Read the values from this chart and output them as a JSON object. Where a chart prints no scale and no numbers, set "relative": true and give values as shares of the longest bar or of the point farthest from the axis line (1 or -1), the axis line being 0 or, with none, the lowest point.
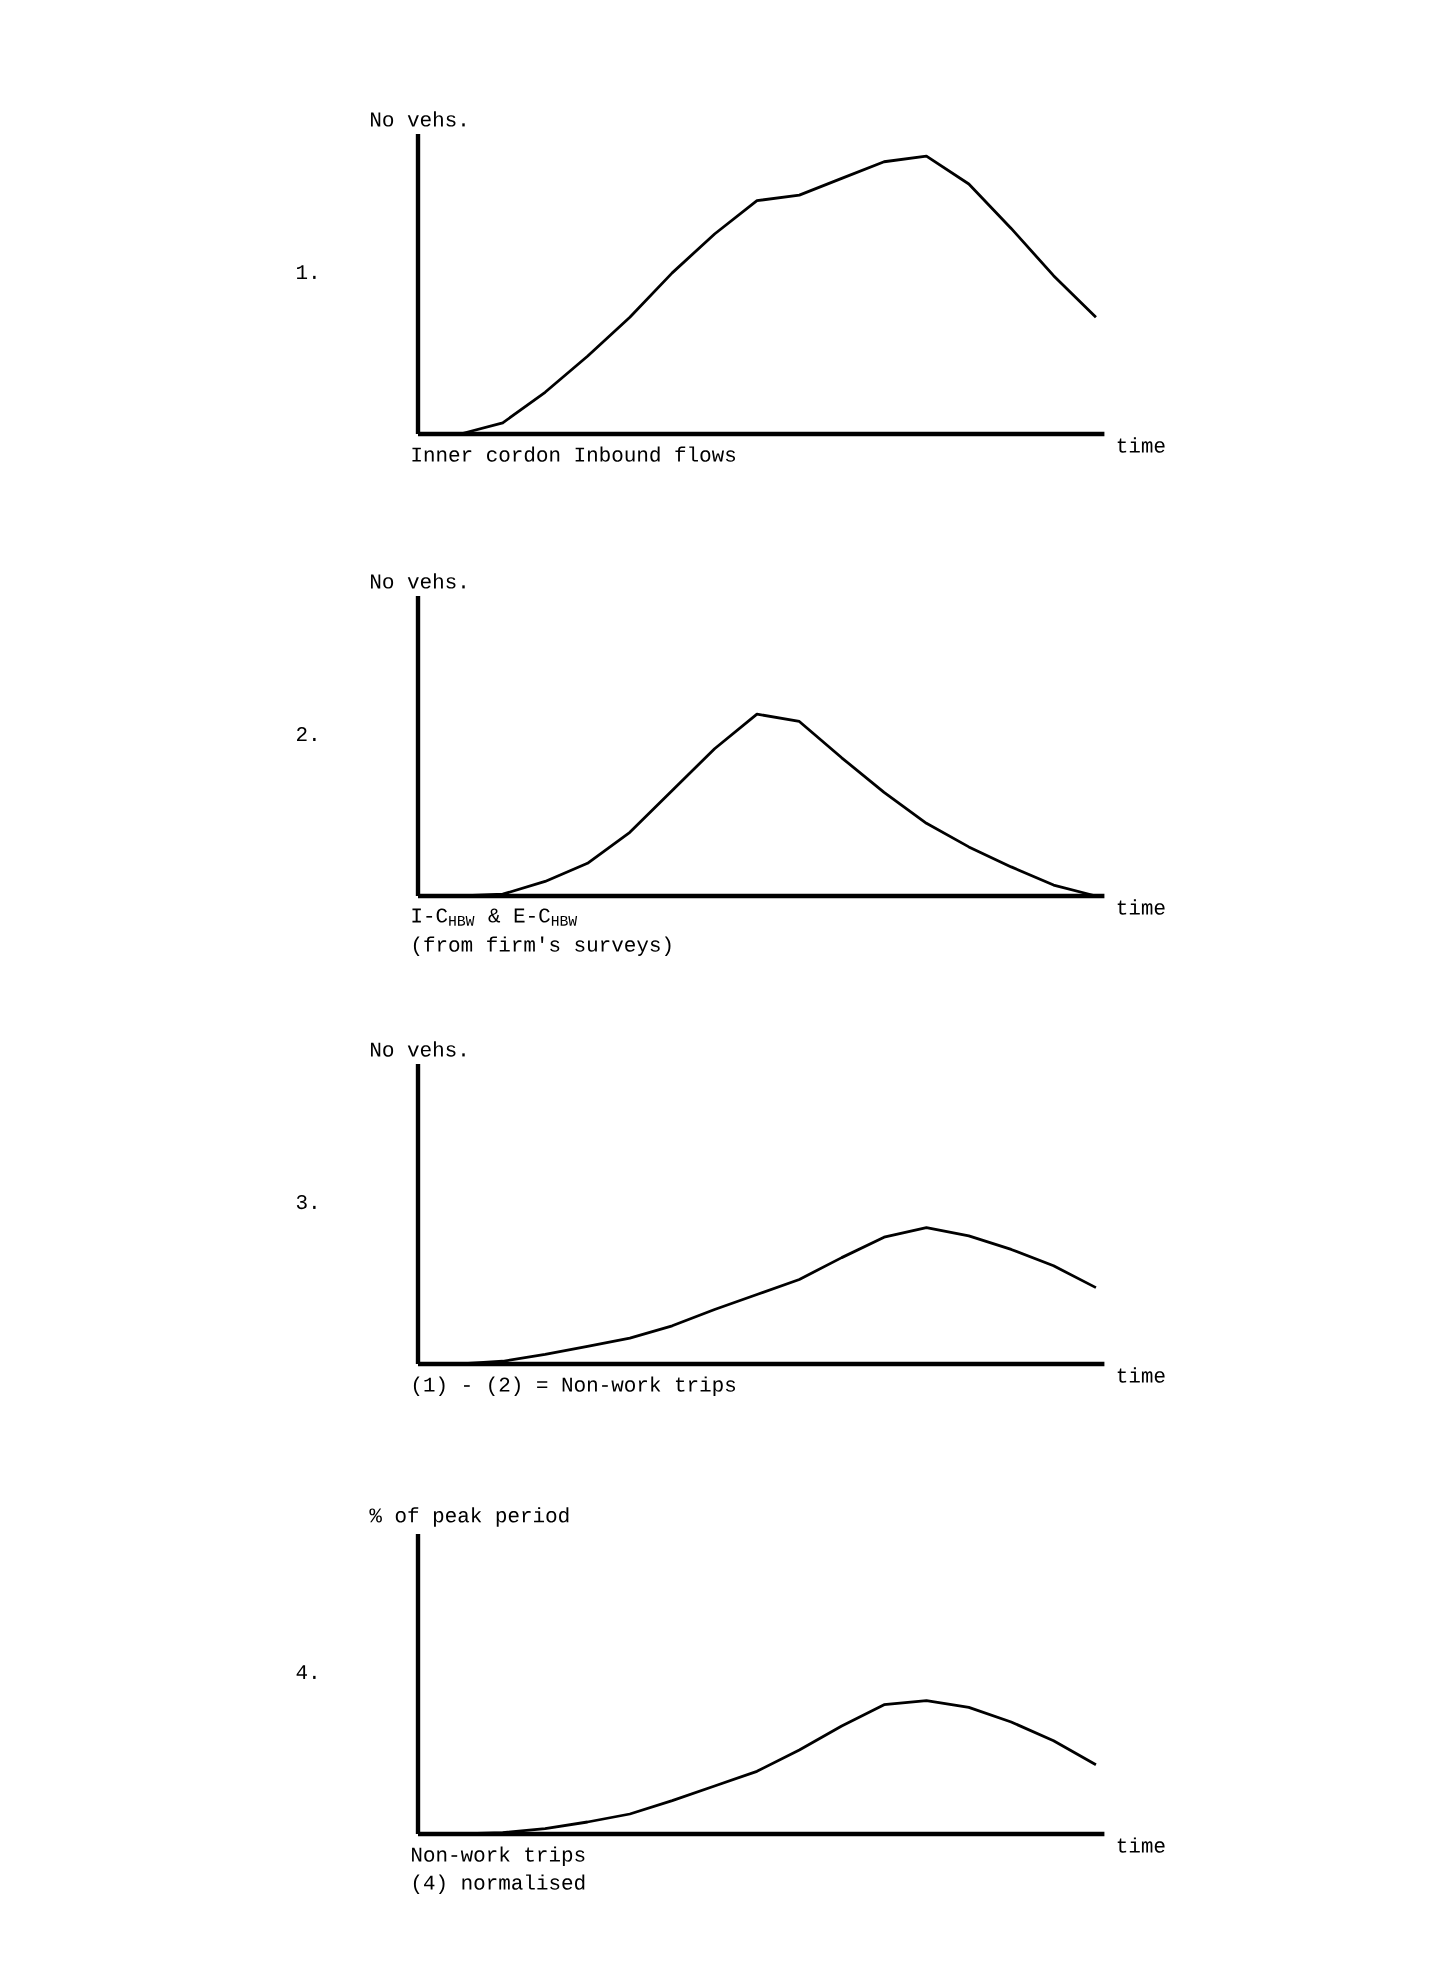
{
  "chart_data": [
    {
      "type": "line",
      "title": "1.",
      "ylabel": "No vehs.",
      "xlabel": "time",
      "annotations": [
        "Inner cordon  Inbound flows"
      ],
      "relative": true,
      "color": "#000000",
      "categories": [
        null,
        null,
        null,
        null,
        null,
        null,
        null,
        null,
        null,
        null,
        null,
        null,
        null,
        null,
        null,
        null,
        null
      ],
      "values": [
        0,
        0,
        0.04,
        0.15,
        0.28,
        0.42,
        0.58,
        0.72,
        0.84,
        0.86,
        0.92,
        0.98,
        1,
        0.9,
        0.74,
        0.57,
        0.42
      ]
    },
    {
      "type": "line",
      "title": "2.",
      "ylabel": "No vehs.",
      "xlabel": "time",
      "annotations": [
        "I-C$_{HBW}$ & E-C$_{HBW}$",
        "(from firm's surveys)"
      ],
      "relative": true,
      "color": "#000000",
      "categories": [
        null,
        null,
        null,
        null,
        null,
        null,
        null,
        null,
        null,
        null,
        null,
        null,
        null,
        null,
        null,
        null,
        null
      ],
      "values": [
        0,
        0,
        0.01,
        0.08,
        0.18,
        0.35,
        0.58,
        0.81,
        1,
        0.96,
        0.76,
        0.57,
        0.4,
        0.27,
        0.16,
        0.06,
        0
      ]
    },
    {
      "type": "line",
      "title": "3.",
      "ylabel": "No vehs.",
      "xlabel": "time",
      "annotations": [
        "(1) - (2) = Non-work trips"
      ],
      "relative": true,
      "color": "#000000",
      "categories": [
        null,
        null,
        null,
        null,
        null,
        null,
        null,
        null,
        null,
        null,
        null,
        null,
        null,
        null,
        null,
        null,
        null
      ],
      "values": [
        0,
        0,
        0.02,
        0.07,
        0.13,
        0.19,
        0.28,
        0.4,
        0.51,
        0.62,
        0.78,
        0.93,
        1,
        0.94,
        0.84,
        0.72,
        0.56
      ]
    },
    {
      "type": "line",
      "title": "4.",
      "ylabel": "% of peak period",
      "xlabel": "time",
      "annotations": [
        "Non-work trips",
        "(4) normalised"
      ],
      "relative": true,
      "color": "#000000",
      "categories": [
        null,
        null,
        null,
        null,
        null,
        null,
        null,
        null,
        null,
        null,
        null,
        null,
        null,
        null,
        null,
        null,
        null
      ],
      "values": [
        0,
        0,
        0.01,
        0.04,
        0.09,
        0.15,
        0.25,
        0.36,
        0.47,
        0.63,
        0.81,
        0.97,
        1,
        0.95,
        0.84,
        0.7,
        0.52
      ]
    }
  ]
}
